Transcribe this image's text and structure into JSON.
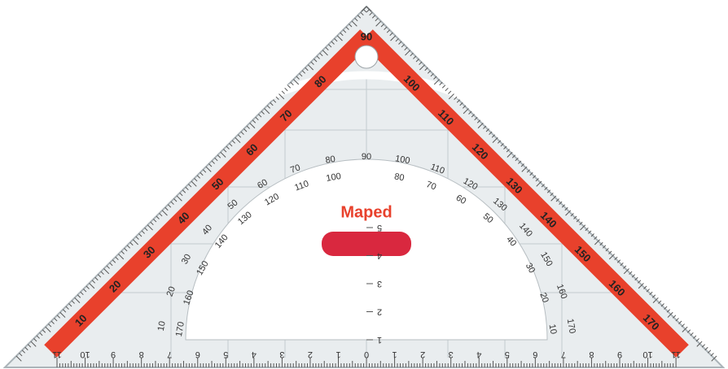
{
  "brand": "Maped",
  "edge_scale": [
    10,
    20,
    30,
    40,
    50,
    60,
    70,
    80,
    90,
    100,
    110,
    120,
    130,
    140,
    150,
    160,
    170
  ],
  "base_scale": [
    11,
    10,
    9,
    8,
    7,
    6,
    5,
    4,
    3,
    2,
    1,
    0,
    1,
    2,
    3,
    4,
    5,
    6,
    7,
    8,
    9,
    10,
    11
  ],
  "protractor_outer": [
    10,
    20,
    30,
    40,
    50,
    60,
    70,
    80,
    90,
    100,
    110,
    120,
    130,
    140,
    150,
    160,
    170
  ],
  "protractor_inner": [
    170,
    160,
    150,
    140,
    130,
    120,
    110,
    100,
    80,
    70,
    60,
    50,
    40,
    30,
    20,
    10
  ],
  "center_scale": [
    1,
    2,
    3,
    4,
    5
  ]
}
